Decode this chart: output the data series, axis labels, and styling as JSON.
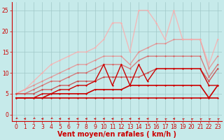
{
  "background_color": "#c6eaea",
  "grid_color": "#a0c8c8",
  "xlabel": "Vent moyen/en rafales ( km/h )",
  "xlabel_color": "#cc0000",
  "xlabel_fontsize": 7,
  "xticks": [
    0,
    1,
    2,
    3,
    4,
    5,
    6,
    7,
    8,
    9,
    10,
    11,
    12,
    13,
    14,
    15,
    16,
    17,
    18,
    19,
    20,
    21,
    22,
    23
  ],
  "yticks": [
    0,
    5,
    10,
    15,
    20,
    25
  ],
  "ylim": [
    -1.5,
    27
  ],
  "xlim": [
    -0.5,
    23.5
  ],
  "tick_fontsize": 5.5,
  "lines": [
    {
      "x": [
        0,
        1,
        2,
        3,
        4,
        5,
        6,
        7,
        8,
        9,
        10,
        11,
        12,
        13,
        14,
        15,
        16,
        17,
        18,
        19,
        20,
        21,
        22,
        23
      ],
      "y": [
        4,
        4,
        4,
        4,
        4,
        4,
        4,
        4,
        4,
        4,
        4,
        4,
        4,
        4,
        4,
        4,
        4,
        4,
        4,
        4,
        4,
        4,
        4,
        4
      ],
      "color": "#cc0000",
      "lw": 1.2,
      "marker": "D",
      "ms": 1.5,
      "alpha": 1.0,
      "zorder": 5
    },
    {
      "x": [
        0,
        1,
        2,
        3,
        4,
        5,
        6,
        7,
        8,
        9,
        10,
        11,
        12,
        13,
        14,
        15,
        16,
        17,
        18,
        19,
        20,
        21,
        22,
        23
      ],
      "y": [
        4,
        4,
        4,
        4,
        5,
        5,
        5,
        5,
        5,
        6,
        6,
        6,
        6,
        7,
        7,
        7,
        7,
        7,
        7,
        7,
        7,
        7,
        4,
        7
      ],
      "color": "#cc0000",
      "lw": 1.2,
      "marker": "D",
      "ms": 1.5,
      "alpha": 1.0,
      "zorder": 5
    },
    {
      "x": [
        0,
        1,
        2,
        3,
        4,
        5,
        6,
        7,
        8,
        9,
        10,
        11,
        12,
        13,
        14,
        15,
        16,
        17,
        18,
        19,
        20,
        21,
        22,
        23
      ],
      "y": [
        4,
        4,
        4,
        5,
        5,
        6,
        6,
        7,
        7,
        8,
        12,
        7,
        12,
        7,
        12,
        8,
        11,
        11,
        11,
        11,
        11,
        11,
        7,
        7
      ],
      "color": "#cc0000",
      "lw": 1.0,
      "marker": "D",
      "ms": 1.5,
      "alpha": 1.0,
      "zorder": 4
    },
    {
      "x": [
        0,
        1,
        2,
        3,
        4,
        5,
        6,
        7,
        8,
        9,
        10,
        11,
        12,
        13,
        14,
        15,
        16,
        17,
        18,
        19,
        20,
        21,
        22,
        23
      ],
      "y": [
        5,
        5,
        5,
        6,
        6,
        7,
        7,
        8,
        8,
        8,
        9,
        9,
        9,
        9,
        9,
        10,
        11,
        11,
        11,
        11,
        11,
        11,
        8,
        11
      ],
      "color": "#cc2222",
      "lw": 1.0,
      "marker": "D",
      "ms": 1.5,
      "alpha": 0.7,
      "zorder": 3
    },
    {
      "x": [
        0,
        1,
        2,
        3,
        4,
        5,
        6,
        7,
        8,
        9,
        10,
        11,
        12,
        13,
        14,
        15,
        16,
        17,
        18,
        19,
        20,
        21,
        22,
        23
      ],
      "y": [
        5,
        5,
        6,
        7,
        8,
        8,
        9,
        10,
        10,
        11,
        12,
        12,
        12,
        11,
        13,
        14,
        14,
        14,
        14,
        14,
        14,
        14,
        9,
        12
      ],
      "color": "#dd4444",
      "lw": 1.0,
      "marker": "D",
      "ms": 1.5,
      "alpha": 0.65,
      "zorder": 3
    },
    {
      "x": [
        0,
        1,
        2,
        3,
        4,
        5,
        6,
        7,
        8,
        9,
        10,
        11,
        12,
        13,
        14,
        15,
        16,
        17,
        18,
        19,
        20,
        21,
        22,
        23
      ],
      "y": [
        5,
        6,
        7,
        8,
        9,
        10,
        11,
        12,
        12,
        13,
        14,
        14,
        14,
        12,
        15,
        16,
        17,
        17,
        18,
        18,
        18,
        18,
        11,
        14
      ],
      "color": "#ee7777",
      "lw": 1.0,
      "marker": "D",
      "ms": 1.5,
      "alpha": 0.65,
      "zorder": 2
    },
    {
      "x": [
        0,
        1,
        2,
        3,
        4,
        5,
        6,
        7,
        8,
        9,
        10,
        11,
        12,
        13,
        14,
        15,
        16,
        17,
        18,
        19,
        20,
        21,
        22,
        23
      ],
      "y": [
        5,
        6,
        8,
        10,
        12,
        13,
        14,
        15,
        15,
        16,
        18,
        22,
        22,
        15,
        25,
        25,
        22,
        18,
        25,
        18,
        18,
        18,
        12,
        18
      ],
      "color": "#ffaaaa",
      "lw": 1.0,
      "marker": "D",
      "ms": 1.5,
      "alpha": 0.75,
      "zorder": 2
    }
  ],
  "arrow_directions": [
    225,
    270,
    225,
    270,
    225,
    270,
    270,
    270,
    270,
    270,
    270,
    270,
    315,
    270,
    270,
    270,
    315,
    315,
    270,
    315,
    315,
    315,
    315,
    315
  ]
}
